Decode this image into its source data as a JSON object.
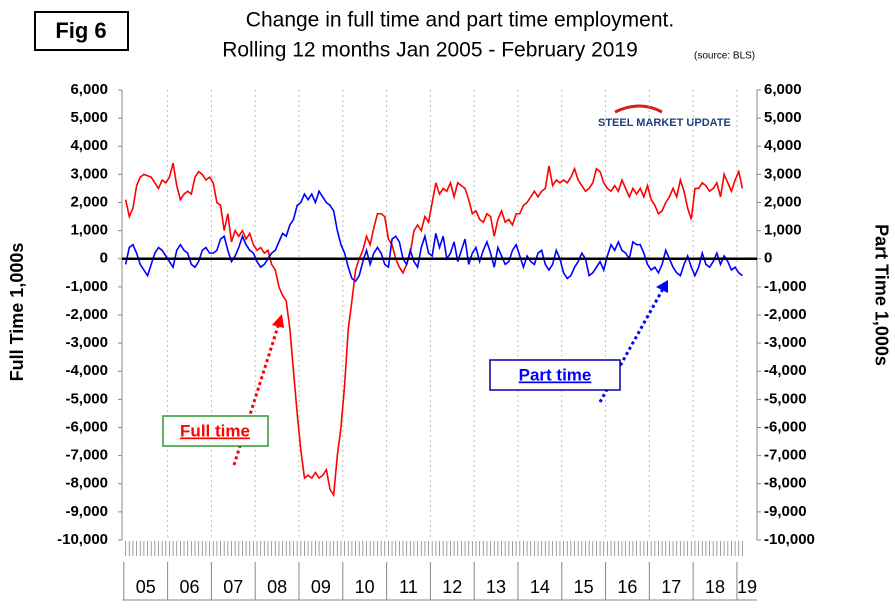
{
  "chart_data": {
    "type": "line",
    "figure_label": "Fig 6",
    "title": "Change in full time and part time employment.",
    "subtitle": "Rolling 12 months Jan 2005 - February 2019",
    "source_note": "(source: BLS)",
    "logo": "STEEL MARKET UPDATE",
    "ylabel": "Full Time 1,000s",
    "y2label": "Part Time 1,000s",
    "grid": true,
    "categories": [
      null,
      null,
      null,
      null,
      null,
      null,
      null,
      null,
      null,
      null,
      null,
      null,
      null,
      null,
      null,
      null,
      null,
      null,
      null,
      null,
      null,
      null,
      null,
      null,
      null,
      null,
      null,
      null,
      null,
      null,
      null,
      null,
      null,
      null,
      null,
      null,
      null,
      null,
      null,
      null,
      null,
      null,
      null,
      null,
      null,
      null,
      null,
      null,
      null,
      null,
      null,
      null,
      null,
      null,
      null,
      null,
      null,
      null,
      null,
      null,
      null,
      null,
      null,
      null,
      null,
      null,
      null,
      null,
      null,
      null,
      null,
      null,
      null,
      null,
      null,
      null,
      null,
      null,
      null,
      null,
      null,
      null,
      null,
      null,
      null,
      null,
      null,
      null,
      null,
      null,
      null,
      null,
      null,
      null,
      null,
      null,
      null,
      null,
      null,
      null,
      null,
      null,
      null,
      null,
      null,
      null,
      null,
      null,
      null,
      null,
      null,
      null,
      null,
      null,
      null,
      null,
      null,
      null,
      null,
      null,
      null,
      null,
      null,
      null,
      null,
      null,
      null,
      null,
      null,
      null,
      null,
      null,
      null,
      null,
      null,
      null,
      null,
      null,
      null,
      null,
      null,
      null,
      null,
      null,
      null,
      null,
      null,
      null,
      null,
      null,
      null,
      null,
      null,
      null,
      null,
      null,
      null,
      null,
      null,
      null,
      null,
      null,
      null,
      null,
      null,
      null,
      null,
      null,
      null,
      null
    ],
    "year_labels": [
      "05",
      "06",
      "07",
      "08",
      "09",
      "10",
      "11",
      "12",
      "13",
      "14",
      "15",
      "16",
      "17",
      "18",
      "19"
    ],
    "ylim": [
      -10000,
      6000
    ],
    "yticks": [
      {
        "value": -10000,
        "label": "-10,000"
      },
      {
        "value": -9000,
        "label": "-9,000"
      },
      {
        "value": -8000,
        "label": "-8,000"
      },
      {
        "value": -7000,
        "label": "-7,000"
      },
      {
        "value": -6000,
        "label": "-6,000"
      },
      {
        "value": -5000,
        "label": "-5,000"
      },
      {
        "value": -4000,
        "label": "-4,000"
      },
      {
        "value": -3000,
        "label": "-3,000"
      },
      {
        "value": -2000,
        "label": "-2,000"
      },
      {
        "value": -1000,
        "label": "-1,000"
      },
      0,
      {
        "value": 1000,
        "label": "1,000"
      },
      {
        "value": 2000,
        "label": "2,000"
      },
      {
        "value": 3000,
        "label": "3,000"
      },
      {
        "value": 4000,
        "label": "4,000"
      },
      {
        "value": 5000,
        "label": "5,000"
      },
      {
        "value": 6000,
        "label": "6,000"
      }
    ],
    "y2lim": [
      -10000,
      6000
    ],
    "y2ticks": [
      {
        "value": -10000,
        "label": "-10,000"
      },
      {
        "value": -9000,
        "label": "-9,000"
      },
      {
        "value": -8000,
        "label": "-8,000"
      },
      {
        "value": -7000,
        "label": "-7,000"
      },
      {
        "value": -6000,
        "label": "-6,000"
      },
      {
        "value": -5000,
        "label": "-5,000"
      },
      {
        "value": -4000,
        "label": "-4,000"
      },
      {
        "value": -3000,
        "label": "-3,000"
      },
      {
        "value": -2000,
        "label": "-2,000"
      },
      {
        "value": -1000,
        "label": "-1,000"
      },
      0,
      {
        "value": 1000,
        "label": "1,000"
      },
      {
        "value": 2000,
        "label": "2,000"
      },
      {
        "value": 3000,
        "label": "3,000"
      },
      {
        "value": 4000,
        "label": "4,000"
      },
      {
        "value": 5000,
        "label": "5,000"
      },
      {
        "value": 6000,
        "label": "6,000"
      }
    ],
    "series": [
      {
        "name": "Full time",
        "color": "#ff0000",
        "values": [
          2100,
          1500,
          1800,
          2600,
          2900,
          3000,
          2950,
          2900,
          2700,
          2500,
          2800,
          2700,
          2900,
          3400,
          2600,
          2100,
          2300,
          2400,
          2300,
          2900,
          3100,
          3000,
          2800,
          2900,
          2700,
          2000,
          1900,
          1000,
          1600,
          600,
          1000,
          800,
          1000,
          700,
          900,
          500,
          300,
          400,
          200,
          300,
          -200,
          -400,
          -1000,
          -1300,
          -1500,
          -2500,
          -4000,
          -5500,
          -6800,
          -7800,
          -7700,
          -7800,
          -7600,
          -7800,
          -7700,
          -7500,
          -8200,
          -8400,
          -7000,
          -6000,
          -4500,
          -2500,
          -1500,
          -400,
          0,
          300,
          800,
          500,
          1100,
          1600,
          1600,
          1500,
          700,
          500,
          0,
          -300,
          -500,
          -200,
          200,
          1000,
          1200,
          1000,
          1500,
          1300,
          2000,
          2700,
          2300,
          2500,
          2400,
          2700,
          2200,
          2700,
          2600,
          2500,
          2100,
          1600,
          1700,
          1400,
          1300,
          1600,
          1500,
          800,
          1400,
          1700,
          1300,
          1400,
          1200,
          1600,
          1600,
          1900,
          2000,
          2200,
          2400,
          2200,
          2400,
          2500,
          3300,
          2600,
          2800,
          2700,
          2800,
          2700,
          2900,
          3200,
          2800,
          2600,
          2400,
          2500,
          2700,
          3200,
          3100,
          2700,
          2500,
          2400,
          2600,
          2400,
          2800,
          2500,
          2200,
          2500,
          2300,
          2500,
          2200,
          2600,
          2100,
          1900,
          1600,
          1700,
          2000,
          2200,
          2500,
          2200,
          2800,
          2400,
          1800,
          1400,
          2500,
          2500,
          2700,
          2600,
          2400,
          2500,
          2700,
          2200,
          3000,
          2700,
          2400,
          2800,
          3100,
          2500
        ]
      },
      {
        "name": "Part time",
        "color": "#0000ff",
        "axis": "y2",
        "values": [
          -200,
          400,
          500,
          200,
          -200,
          -400,
          -600,
          -200,
          200,
          400,
          300,
          100,
          -100,
          -300,
          300,
          500,
          300,
          200,
          -200,
          -300,
          -100,
          300,
          400,
          200,
          200,
          300,
          700,
          800,
          300,
          -100,
          100,
          400,
          800,
          500,
          300,
          200,
          -100,
          -300,
          -200,
          0,
          200,
          300,
          600,
          900,
          800,
          1200,
          1400,
          1900,
          2000,
          2300,
          2100,
          2300,
          2000,
          2400,
          2200,
          2000,
          1900,
          1700,
          1000,
          500,
          200,
          -300,
          -700,
          -800,
          -600,
          -100,
          300,
          -200,
          200,
          400,
          200,
          -200,
          -300,
          700,
          800,
          600,
          0,
          -200,
          300,
          -100,
          -300,
          400,
          800,
          200,
          100,
          900,
          400,
          800,
          0,
          200,
          600,
          -100,
          300,
          700,
          -200,
          200,
          400,
          -100,
          300,
          600,
          200,
          -300,
          400,
          100,
          -200,
          -100,
          300,
          500,
          100,
          -300,
          100,
          -100,
          -200,
          200,
          300,
          -200,
          -400,
          -200,
          300,
          0,
          -500,
          -700,
          -600,
          -300,
          -100,
          200,
          0,
          -600,
          -500,
          -300,
          -100,
          -400,
          100,
          500,
          300,
          600,
          300,
          200,
          0,
          600,
          500,
          500,
          200,
          -200,
          -400,
          -300,
          -500,
          -200,
          300,
          0,
          -300,
          -500,
          -600,
          -200,
          100,
          -300,
          -600,
          -300,
          200,
          -200,
          -300,
          -100,
          200,
          -200,
          100,
          -100,
          -400,
          -300,
          -500,
          -600
        ]
      }
    ]
  }
}
